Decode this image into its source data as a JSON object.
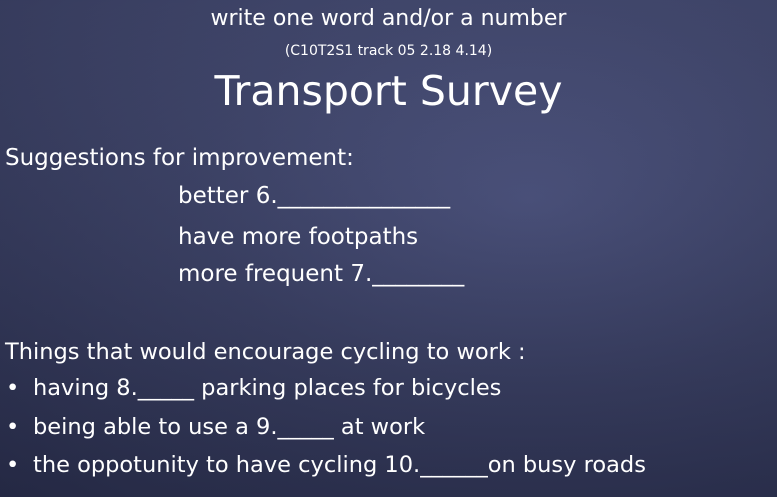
{
  "instruction": "write one word and/or a number",
  "track": "(C10T2S1 track 05 2.18 4.14)",
  "title": "Transport Survey",
  "suggestions": {
    "heading": "Suggestions for improvement:",
    "items": [
      {
        "text": "better 6.",
        "blank": "_______________"
      },
      {
        "text": "have more footpaths",
        "blank": ""
      },
      {
        "text": "more frequent 7.",
        "blank": "________"
      }
    ]
  },
  "cycling": {
    "heading": "Things that would encourage cycling to work :",
    "bullet_symbol": "•",
    "items": [
      {
        "before": "having 8.",
        "blank": "_____",
        "after": " parking places for bicycles"
      },
      {
        "before": "being able to use a 9.",
        "blank": "_____",
        "after": " at work"
      },
      {
        "before": "the oppotunity to have cycling 10.",
        "blank": "______",
        "after": "on busy roads"
      }
    ]
  }
}
